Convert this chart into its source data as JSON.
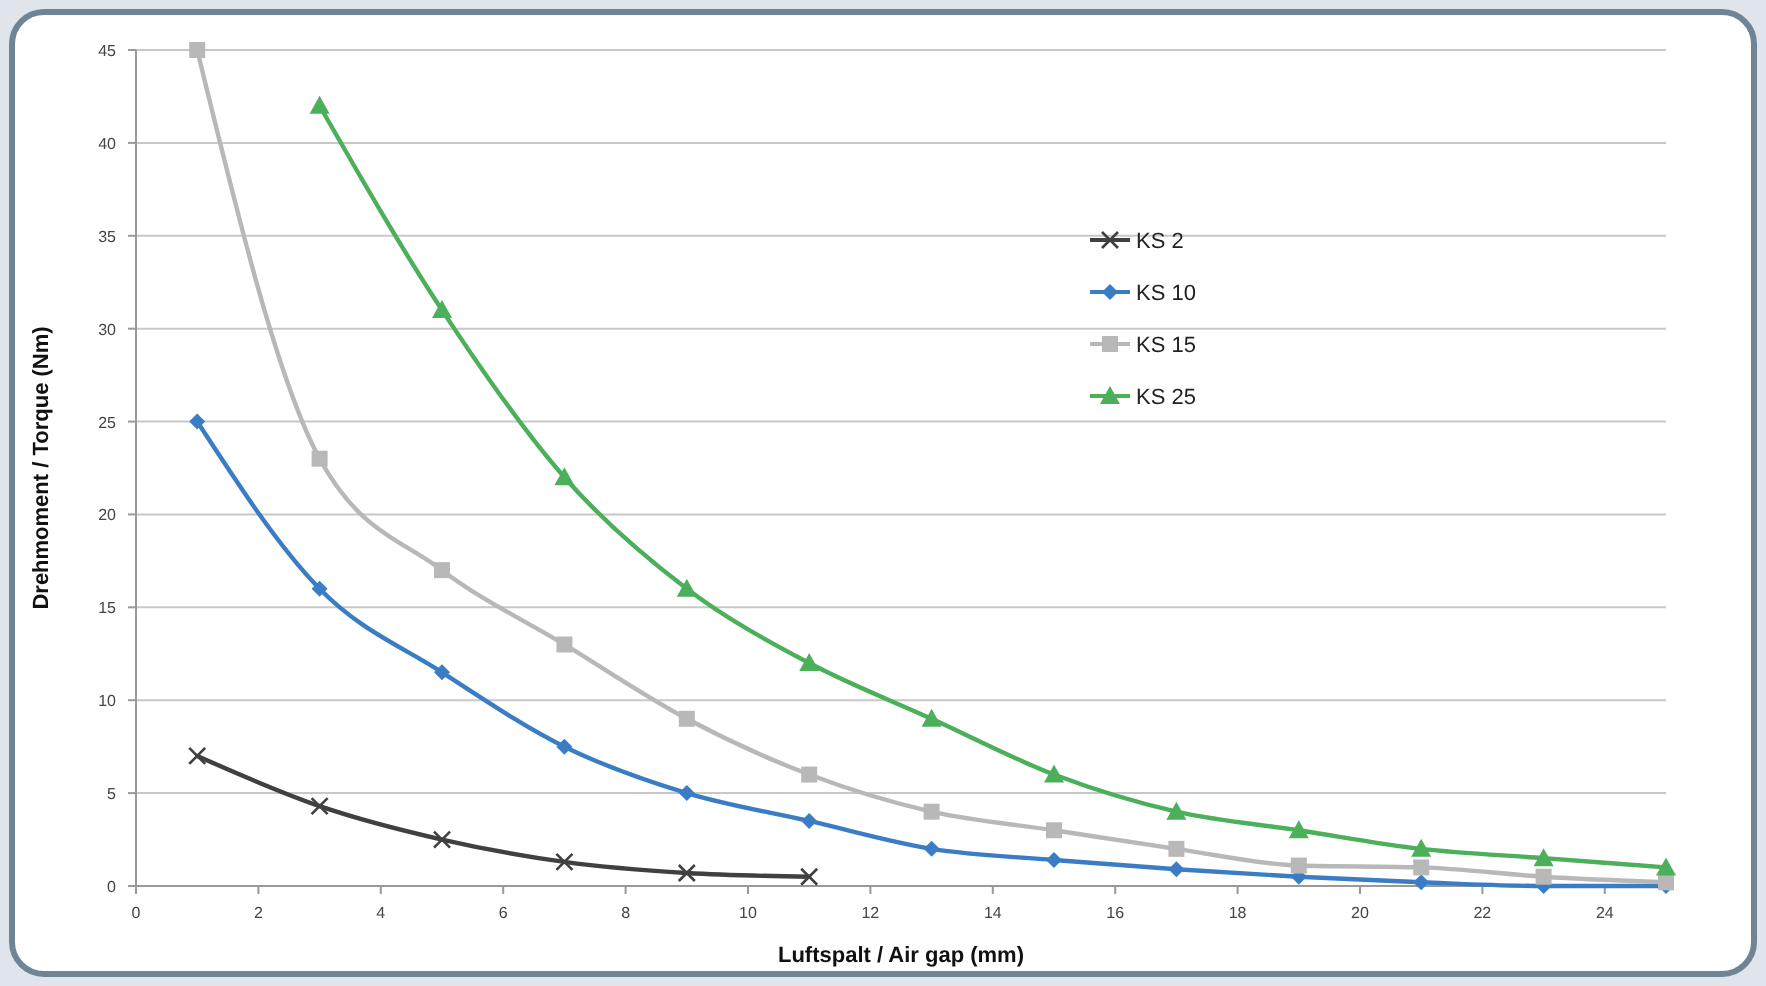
{
  "chart_data": {
    "type": "line",
    "xlabel": "Luftspalt / Air gap (mm)",
    "ylabel": "Drehmoment / Torque (Nm)",
    "xlim": [
      0,
      25
    ],
    "xticks": [
      0,
      2,
      4,
      6,
      8,
      10,
      12,
      14,
      16,
      18,
      20,
      22,
      24
    ],
    "ylim": [
      0,
      45
    ],
    "yticks": [
      0,
      5,
      10,
      15,
      20,
      25,
      30,
      35,
      40,
      45
    ],
    "grid": "y",
    "legend": "top right",
    "line_style": "solid",
    "series": [
      {
        "name": "KS 2",
        "color": "#404040",
        "marker": "cross",
        "x": [
          1,
          3,
          5,
          7,
          9,
          11
        ],
        "values": [
          7,
          4.3,
          2.5,
          1.3,
          0.7,
          0.5
        ]
      },
      {
        "name": "KS 10",
        "color": "#3a7dc4",
        "marker": "diamond",
        "x": [
          1,
          3,
          5,
          7,
          9,
          11,
          13,
          15,
          17,
          19,
          21,
          23,
          25
        ],
        "values": [
          25,
          16,
          11.5,
          7.5,
          5,
          3.5,
          2,
          1.4,
          0.9,
          0.5,
          0.2,
          0,
          0
        ]
      },
      {
        "name": "KS 15",
        "color": "#b8b8b8",
        "marker": "square",
        "x": [
          1,
          3,
          5,
          7,
          9,
          11,
          13,
          15,
          17,
          19,
          21,
          23,
          25
        ],
        "values": [
          45,
          23,
          17,
          13,
          9,
          6,
          4,
          3,
          2,
          1.1,
          1,
          0.5,
          0.2
        ]
      },
      {
        "name": "KS 25",
        "color": "#4caf5a",
        "marker": "triangle",
        "x": [
          3,
          5,
          7,
          9,
          11,
          13,
          15,
          17,
          19,
          21,
          23,
          25
        ],
        "values": [
          42,
          31,
          22,
          16,
          12,
          9,
          6,
          4,
          3,
          2,
          1.5,
          1
        ]
      }
    ]
  }
}
